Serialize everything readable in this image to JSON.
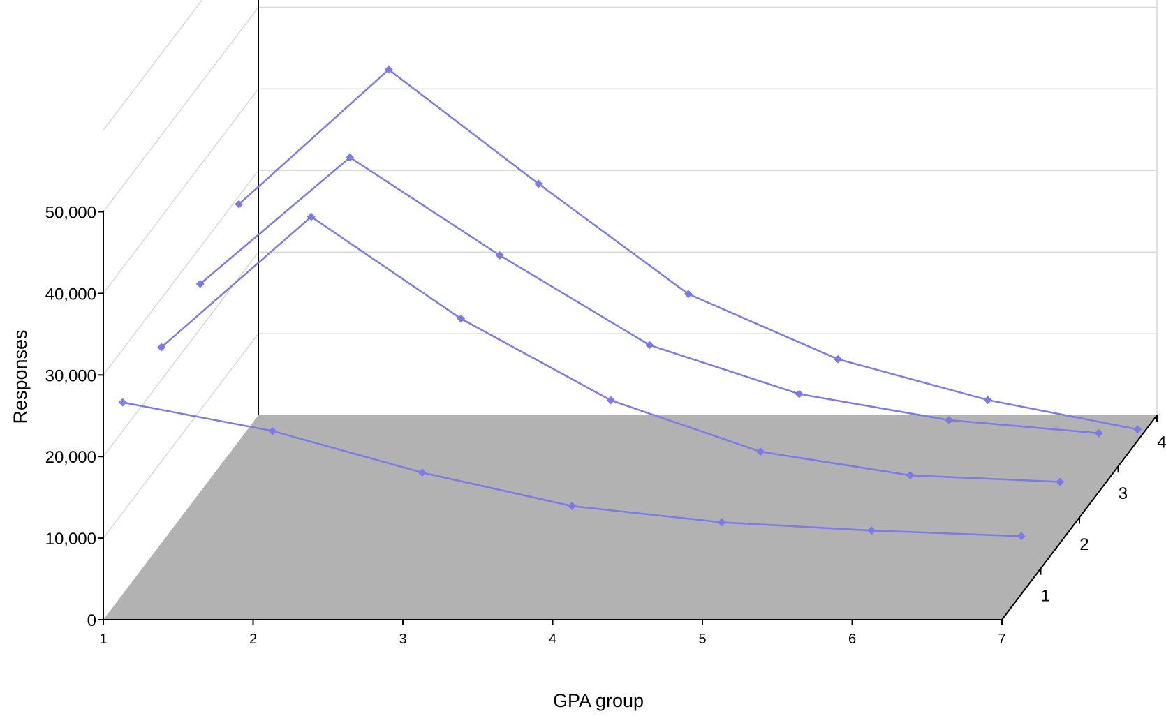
{
  "chart_data": {
    "type": "line",
    "title": "",
    "xlabel": "GPA group",
    "ylabel": "Responses",
    "zlabel": "",
    "x": [
      1,
      2,
      3,
      4,
      5,
      6,
      7
    ],
    "x_tick_labels": [
      "1",
      "2",
      "3",
      "4",
      "5",
      "6",
      "7"
    ],
    "y_ticks": [
      0,
      10000,
      20000,
      30000,
      40000,
      50000
    ],
    "y_tick_labels": [
      "0",
      "10,000",
      "20,000",
      "30,000",
      "40,000",
      "50,000"
    ],
    "ylim": [
      0,
      60000
    ],
    "z_tick_labels": [
      "1",
      "2",
      "3",
      "4"
    ],
    "grid": true,
    "floor_color": "#b2b2b2",
    "series_color": "#7b7be6",
    "series": [
      {
        "values": [
          23500,
          20000,
          14900,
          10800,
          8800,
          7800,
          7100
        ]
      },
      {
        "values": [
          24000,
          40000,
          27500,
          17500,
          11200,
          8300,
          7500
        ]
      },
      {
        "values": [
          25500,
          41000,
          29000,
          18000,
          12000,
          8800,
          7200
        ]
      },
      {
        "values": [
          29000,
          45500,
          31500,
          18000,
          10000,
          5000,
          1400
        ]
      }
    ]
  }
}
